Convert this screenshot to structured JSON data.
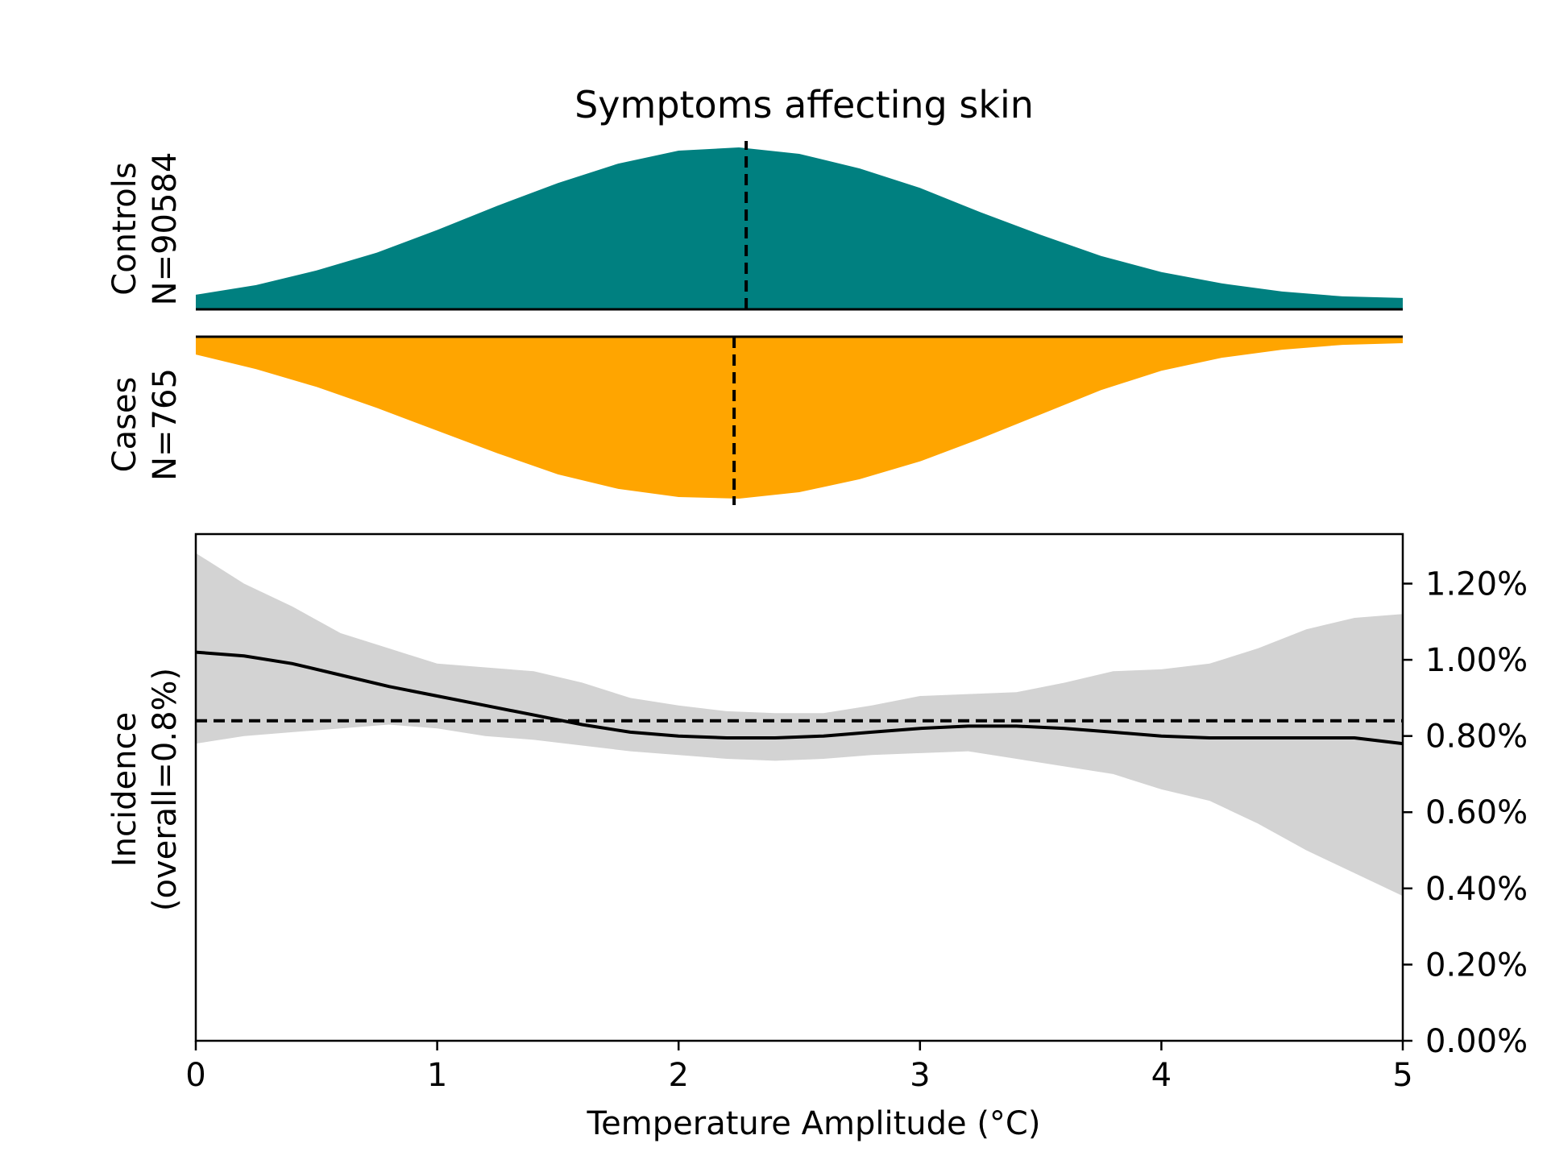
{
  "chart_data": {
    "type": "area",
    "title": "Symptoms affecting skin",
    "xlabel": "Temperature Amplitude (°C)",
    "xlim": [
      0,
      5
    ],
    "x_ticks": [
      "0",
      "1",
      "2",
      "3",
      "4",
      "5"
    ],
    "density_panels": {
      "controls": {
        "label_line1": "Controls",
        "label_line2": "N=90584",
        "color": "#008080",
        "median": 2.28,
        "density_x": [
          0,
          0.25,
          0.5,
          0.75,
          1.0,
          1.25,
          1.5,
          1.75,
          2.0,
          2.25,
          2.5,
          2.75,
          3.0,
          3.25,
          3.5,
          3.75,
          4.0,
          4.25,
          4.5,
          4.75,
          5.0
        ],
        "density_y": [
          0.09,
          0.15,
          0.24,
          0.35,
          0.49,
          0.64,
          0.78,
          0.9,
          0.98,
          1.0,
          0.96,
          0.87,
          0.75,
          0.6,
          0.46,
          0.33,
          0.23,
          0.16,
          0.11,
          0.08,
          0.07
        ]
      },
      "cases": {
        "label_line1": "Cases",
        "label_line2": "N=765",
        "color": "#FFA500",
        "median": 2.23,
        "density_x": [
          0,
          0.25,
          0.5,
          0.75,
          1.0,
          1.25,
          1.5,
          1.75,
          2.0,
          2.25,
          2.5,
          2.75,
          3.0,
          3.25,
          3.5,
          3.75,
          4.0,
          4.25,
          4.5,
          4.75,
          5.0
        ],
        "density_y": [
          0.11,
          0.2,
          0.31,
          0.44,
          0.58,
          0.72,
          0.85,
          0.94,
          0.99,
          1.0,
          0.96,
          0.88,
          0.77,
          0.63,
          0.48,
          0.33,
          0.21,
          0.13,
          0.08,
          0.05,
          0.04
        ]
      }
    },
    "incidence": {
      "ylabel_line1": "Incidence",
      "ylabel_line2": "(overall=0.8%)",
      "ylim": [
        0,
        1.33
      ],
      "y_ticks": [
        0,
        0.2,
        0.4,
        0.6,
        0.8,
        1.0,
        1.2
      ],
      "y_tick_labels": [
        "0.00%",
        "0.20%",
        "0.40%",
        "0.60%",
        "0.80%",
        "1.00%",
        "1.20%"
      ],
      "overall": 0.84,
      "x": [
        0,
        0.2,
        0.4,
        0.6,
        0.8,
        1.0,
        1.2,
        1.4,
        1.6,
        1.8,
        2.0,
        2.2,
        2.4,
        2.6,
        2.8,
        3.0,
        3.2,
        3.4,
        3.6,
        3.8,
        4.0,
        4.2,
        4.4,
        4.6,
        4.8,
        5.0
      ],
      "estimate": [
        1.02,
        1.01,
        0.99,
        0.96,
        0.93,
        0.905,
        0.88,
        0.855,
        0.83,
        0.81,
        0.8,
        0.795,
        0.795,
        0.8,
        0.81,
        0.82,
        0.826,
        0.826,
        0.82,
        0.81,
        0.8,
        0.795,
        0.795,
        0.795,
        0.795,
        0.78
      ],
      "ci_lower": [
        0.78,
        0.8,
        0.81,
        0.82,
        0.83,
        0.82,
        0.8,
        0.79,
        0.775,
        0.76,
        0.75,
        0.74,
        0.735,
        0.74,
        0.75,
        0.755,
        0.76,
        0.74,
        0.72,
        0.7,
        0.66,
        0.63,
        0.57,
        0.5,
        0.44,
        0.38
      ],
      "ci_upper": [
        1.28,
        1.2,
        1.14,
        1.07,
        1.03,
        0.99,
        0.98,
        0.97,
        0.94,
        0.9,
        0.88,
        0.865,
        0.86,
        0.86,
        0.88,
        0.905,
        0.91,
        0.915,
        0.94,
        0.97,
        0.975,
        0.99,
        1.03,
        1.08,
        1.11,
        1.12
      ]
    },
    "fill_color_ci": "#D3D3D3",
    "line_color": "#000000",
    "grid": false
  }
}
